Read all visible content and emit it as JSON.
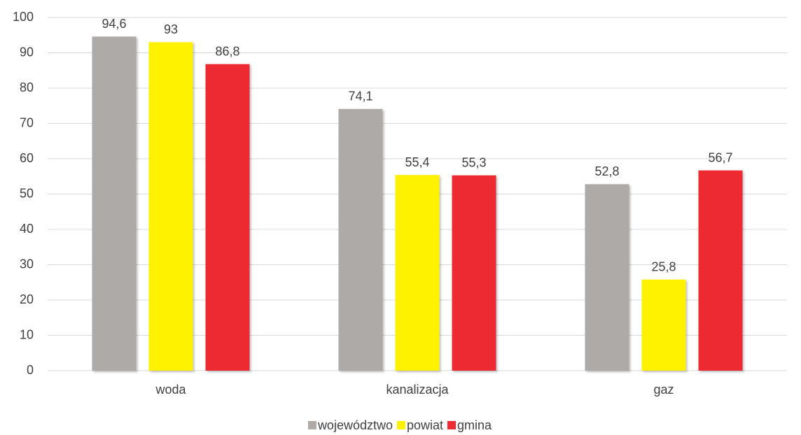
{
  "chart_data": {
    "type": "bar",
    "categories": [
      "woda",
      "kanalizacja",
      "gaz"
    ],
    "series": [
      {
        "name": "województwo",
        "color": "#aeaaa8",
        "values": [
          94.6,
          74.1,
          52.8
        ],
        "value_labels": [
          "94,6",
          "74,1",
          "52,8"
        ]
      },
      {
        "name": "powiat",
        "color": "#fff200",
        "values": [
          93,
          55.4,
          25.8
        ],
        "value_labels": [
          "93",
          "55,4",
          "25,8"
        ]
      },
      {
        "name": "gmina",
        "color": "#ed2b33",
        "values": [
          86.8,
          55.3,
          56.7
        ],
        "value_labels": [
          "86,8",
          "55,3",
          "56,7"
        ]
      }
    ],
    "ylim": [
      0,
      100
    ],
    "yticks": [
      0,
      10,
      20,
      30,
      40,
      50,
      60,
      70,
      80,
      90,
      100
    ],
    "grid": true,
    "legend": "bottom"
  }
}
